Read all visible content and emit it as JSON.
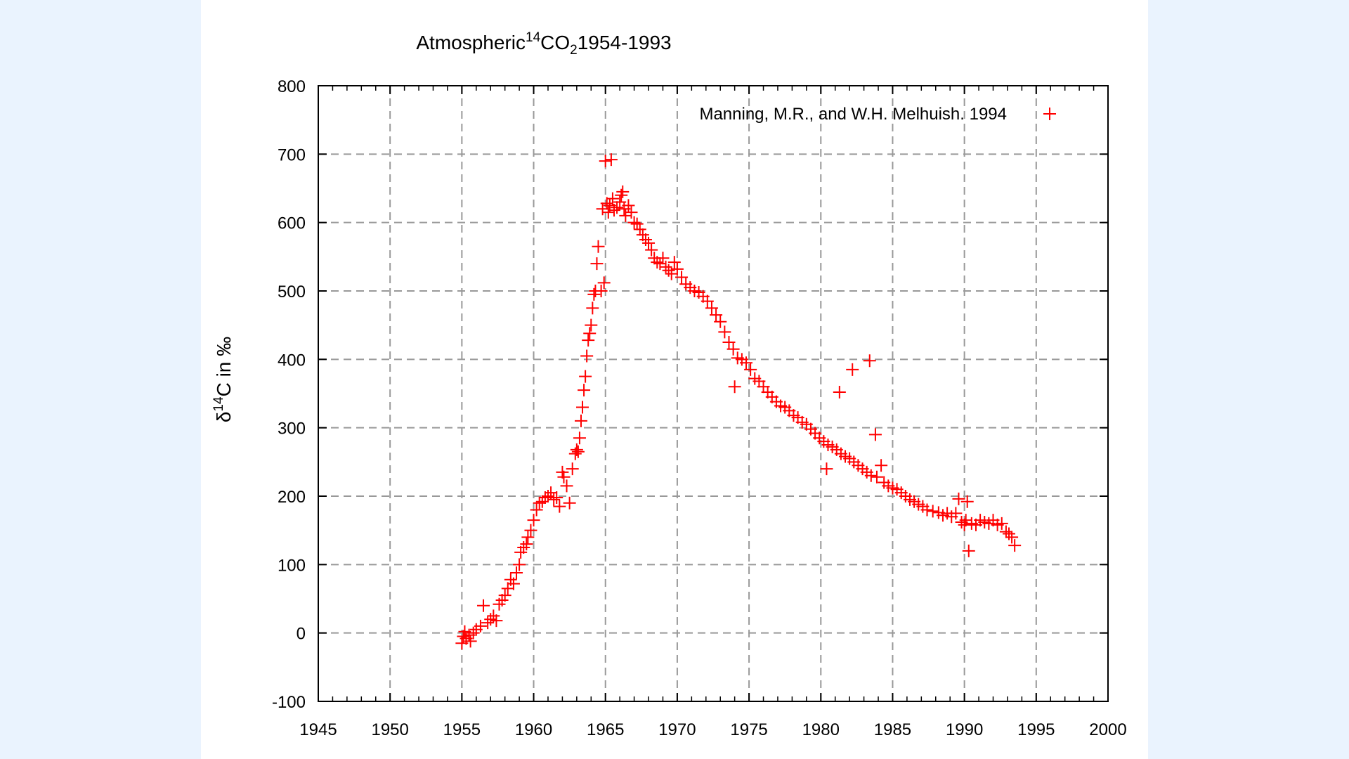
{
  "chart_data": {
    "type": "scatter",
    "title": {
      "prefix": "Atmospheric",
      "sup": "14",
      "middle": "CO",
      "sub": "2",
      "suffix": "1954-1993"
    },
    "ylabel": {
      "prefix": "δ",
      "sup": "14",
      "suffix": "C in ‰"
    },
    "xlim": [
      1945,
      2000
    ],
    "ylim": [
      -100,
      800
    ],
    "x_ticks": [
      1945,
      1950,
      1955,
      1960,
      1965,
      1970,
      1975,
      1980,
      1985,
      1990,
      1995,
      2000
    ],
    "y_ticks": [
      -100,
      0,
      100,
      200,
      300,
      400,
      500,
      600,
      700,
      800
    ],
    "grid": true,
    "legend": {
      "position": "top-right"
    },
    "series": [
      {
        "name": "Manning, M.R., and W.H. Melhuish. 1994",
        "color": "#ff0000",
        "marker": "plus",
        "points": [
          [
            1955.0,
            -15
          ],
          [
            1955.1,
            -5
          ],
          [
            1955.2,
            2
          ],
          [
            1955.3,
            -8
          ],
          [
            1955.5,
            -3
          ],
          [
            1955.6,
            -12
          ],
          [
            1955.8,
            0
          ],
          [
            1956.0,
            5
          ],
          [
            1956.3,
            10
          ],
          [
            1956.5,
            40
          ],
          [
            1956.8,
            15
          ],
          [
            1957.0,
            20
          ],
          [
            1957.2,
            25
          ],
          [
            1957.4,
            18
          ],
          [
            1957.6,
            42
          ],
          [
            1957.8,
            48
          ],
          [
            1958.0,
            55
          ],
          [
            1958.2,
            65
          ],
          [
            1958.4,
            78
          ],
          [
            1958.6,
            72
          ],
          [
            1958.8,
            88
          ],
          [
            1959.0,
            100
          ],
          [
            1959.1,
            118
          ],
          [
            1959.3,
            125
          ],
          [
            1959.5,
            130
          ],
          [
            1959.6,
            140
          ],
          [
            1959.8,
            150
          ],
          [
            1960.0,
            165
          ],
          [
            1960.2,
            180
          ],
          [
            1960.4,
            190
          ],
          [
            1960.6,
            192
          ],
          [
            1960.8,
            198
          ],
          [
            1961.0,
            200
          ],
          [
            1961.2,
            205
          ],
          [
            1961.4,
            195
          ],
          [
            1961.6,
            198
          ],
          [
            1961.8,
            185
          ],
          [
            1962.0,
            235
          ],
          [
            1962.1,
            228
          ],
          [
            1962.3,
            215
          ],
          [
            1962.5,
            190
          ],
          [
            1962.7,
            240
          ],
          [
            1962.9,
            262
          ],
          [
            1963.0,
            268
          ],
          [
            1963.1,
            265
          ],
          [
            1963.2,
            285
          ],
          [
            1963.3,
            310
          ],
          [
            1963.4,
            330
          ],
          [
            1963.5,
            355
          ],
          [
            1963.6,
            375
          ],
          [
            1963.7,
            405
          ],
          [
            1963.8,
            428
          ],
          [
            1963.9,
            438
          ],
          [
            1964.0,
            450
          ],
          [
            1964.1,
            475
          ],
          [
            1964.2,
            495
          ],
          [
            1964.3,
            500
          ],
          [
            1964.4,
            540
          ],
          [
            1964.5,
            565
          ],
          [
            1964.7,
            500
          ],
          [
            1964.8,
            620
          ],
          [
            1964.9,
            512
          ],
          [
            1965.0,
            690
          ],
          [
            1965.1,
            628
          ],
          [
            1965.2,
            615
          ],
          [
            1965.3,
            625
          ],
          [
            1965.4,
            692
          ],
          [
            1965.5,
            635
          ],
          [
            1965.6,
            618
          ],
          [
            1965.8,
            622
          ],
          [
            1966.0,
            630
          ],
          [
            1966.1,
            640
          ],
          [
            1966.2,
            645
          ],
          [
            1966.3,
            620
          ],
          [
            1966.4,
            610
          ],
          [
            1966.6,
            625
          ],
          [
            1966.8,
            615
          ],
          [
            1967.0,
            600
          ],
          [
            1967.2,
            598
          ],
          [
            1967.4,
            590
          ],
          [
            1967.6,
            582
          ],
          [
            1967.8,
            575
          ],
          [
            1968.0,
            570
          ],
          [
            1968.2,
            560
          ],
          [
            1968.4,
            548
          ],
          [
            1968.6,
            542
          ],
          [
            1968.8,
            540
          ],
          [
            1969.0,
            548
          ],
          [
            1969.2,
            535
          ],
          [
            1969.4,
            530
          ],
          [
            1969.6,
            525
          ],
          [
            1969.8,
            542
          ],
          [
            1970.0,
            532
          ],
          [
            1970.3,
            520
          ],
          [
            1970.6,
            510
          ],
          [
            1970.9,
            505
          ],
          [
            1971.2,
            500
          ],
          [
            1971.5,
            498
          ],
          [
            1971.8,
            492
          ],
          [
            1972.1,
            485
          ],
          [
            1972.4,
            475
          ],
          [
            1972.7,
            465
          ],
          [
            1973.0,
            455
          ],
          [
            1973.3,
            440
          ],
          [
            1973.6,
            425
          ],
          [
            1973.9,
            415
          ],
          [
            1974.0,
            360
          ],
          [
            1974.2,
            402
          ],
          [
            1974.5,
            400
          ],
          [
            1974.8,
            395
          ],
          [
            1975.1,
            385
          ],
          [
            1975.4,
            372
          ],
          [
            1975.7,
            368
          ],
          [
            1976.0,
            360
          ],
          [
            1976.3,
            352
          ],
          [
            1976.6,
            345
          ],
          [
            1976.9,
            338
          ],
          [
            1977.2,
            332
          ],
          [
            1977.5,
            330
          ],
          [
            1977.8,
            325
          ],
          [
            1978.1,
            318
          ],
          [
            1978.4,
            315
          ],
          [
            1978.7,
            308
          ],
          [
            1979.0,
            305
          ],
          [
            1979.3,
            298
          ],
          [
            1979.6,
            292
          ],
          [
            1979.9,
            285
          ],
          [
            1980.2,
            280
          ],
          [
            1980.4,
            240
          ],
          [
            1980.5,
            275
          ],
          [
            1980.8,
            272
          ],
          [
            1981.1,
            268
          ],
          [
            1981.3,
            352
          ],
          [
            1981.4,
            262
          ],
          [
            1981.7,
            258
          ],
          [
            1982.0,
            255
          ],
          [
            1982.2,
            385
          ],
          [
            1982.3,
            250
          ],
          [
            1982.6,
            245
          ],
          [
            1982.9,
            240
          ],
          [
            1983.2,
            235
          ],
          [
            1983.4,
            398
          ],
          [
            1983.5,
            230
          ],
          [
            1983.8,
            290
          ],
          [
            1983.9,
            228
          ],
          [
            1984.2,
            245
          ],
          [
            1984.4,
            220
          ],
          [
            1984.7,
            215
          ],
          [
            1985.0,
            212
          ],
          [
            1985.3,
            210
          ],
          [
            1985.6,
            205
          ],
          [
            1985.9,
            200
          ],
          [
            1986.2,
            195
          ],
          [
            1986.5,
            192
          ],
          [
            1986.8,
            188
          ],
          [
            1987.1,
            185
          ],
          [
            1987.4,
            180
          ],
          [
            1987.8,
            178
          ],
          [
            1988.2,
            176
          ],
          [
            1988.5,
            172
          ],
          [
            1988.8,
            175
          ],
          [
            1989.1,
            170
          ],
          [
            1989.4,
            175
          ],
          [
            1989.6,
            196
          ],
          [
            1989.8,
            162
          ],
          [
            1990.0,
            158
          ],
          [
            1990.1,
            165
          ],
          [
            1990.2,
            192
          ],
          [
            1990.3,
            120
          ],
          [
            1990.5,
            160
          ],
          [
            1990.8,
            158
          ],
          [
            1991.1,
            165
          ],
          [
            1991.4,
            162
          ],
          [
            1991.7,
            160
          ],
          [
            1992.0,
            165
          ],
          [
            1992.3,
            158
          ],
          [
            1992.6,
            160
          ],
          [
            1992.9,
            148
          ],
          [
            1993.1,
            145
          ],
          [
            1993.3,
            140
          ],
          [
            1993.5,
            128
          ]
        ]
      }
    ]
  }
}
